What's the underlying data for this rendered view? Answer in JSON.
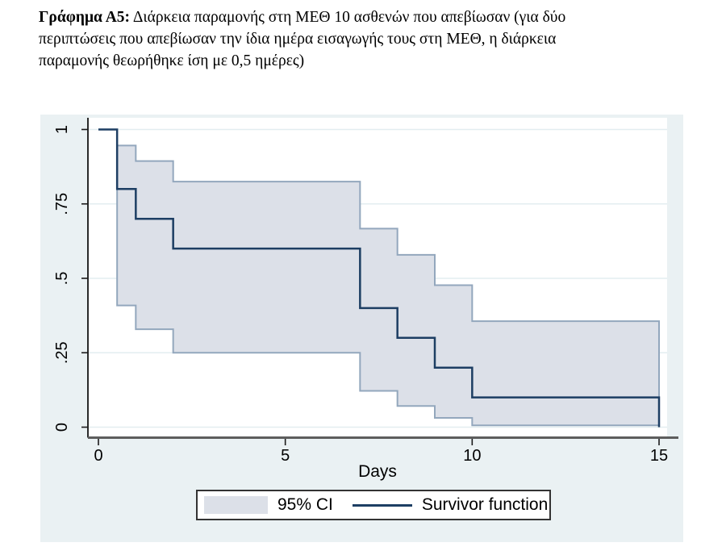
{
  "caption": {
    "bold": "Γράφημα Α5:",
    "line1_rest": "Διάρκεια παραμονής στη ΜΕΘ 10 ασθενών που απεβίωσαν (για δύο",
    "line2": "περιπτώσεις που απεβίωσαν την ίδια ημέρα εισαγωγής τους στη ΜΕΘ, η διάρκεια",
    "line3": "παραμονής θεωρήθηκε ίση με 0,5 ημέρες)"
  },
  "chart_data": {
    "type": "line",
    "subtype": "kaplan-meier-step-with-confidence-band",
    "title": "",
    "xlabel": "Days",
    "ylabel": "",
    "xlim": [
      0,
      15
    ],
    "ylim": [
      0,
      1
    ],
    "xticks": [
      0,
      5,
      10,
      15
    ],
    "xtick_labels": [
      "0",
      "5",
      "10",
      "15"
    ],
    "yticks": [
      0,
      0.25,
      0.5,
      0.75,
      1
    ],
    "ytick_labels": [
      "0",
      ".25",
      ".5",
      ".75",
      "1"
    ],
    "grid": "horizontal",
    "legend": {
      "position": "bottom-center",
      "items": [
        {
          "type": "area",
          "label": "95% CI"
        },
        {
          "type": "line",
          "label": "Survivor function"
        }
      ]
    },
    "series": [
      {
        "name": "Survivor function",
        "type": "step",
        "points": [
          [
            0,
            1
          ],
          [
            0.5,
            0.8
          ],
          [
            1,
            0.7
          ],
          [
            2,
            0.6
          ],
          [
            7,
            0.4
          ],
          [
            8,
            0.3
          ],
          [
            9,
            0.2
          ],
          [
            10,
            0.1
          ],
          [
            15,
            0
          ]
        ]
      },
      {
        "name": "95% CI",
        "type": "band",
        "intervals": [
          {
            "t0": 0.5,
            "t1": 1,
            "lower": 0.409,
            "upper": 0.946
          },
          {
            "t0": 1,
            "t1": 2,
            "lower": 0.329,
            "upper": 0.894
          },
          {
            "t0": 2,
            "t1": 7,
            "lower": 0.25,
            "upper": 0.825
          },
          {
            "t0": 7,
            "t1": 8,
            "lower": 0.122,
            "upper": 0.667
          },
          {
            "t0": 8,
            "t1": 9,
            "lower": 0.071,
            "upper": 0.579
          },
          {
            "t0": 9,
            "t1": 10,
            "lower": 0.031,
            "upper": 0.477
          },
          {
            "t0": 10,
            "t1": 15,
            "lower": 0.006,
            "upper": 0.356
          }
        ]
      }
    ],
    "colors": {
      "survivor_line": "#1d3e63",
      "ci_fill": "#dce0e8",
      "ci_border": "#93a7bd",
      "plot_bg": "#ffffff",
      "outer_bg": "#eaf1f3",
      "grid": "#e3edf0",
      "y_axis": "#2a2a2a",
      "x_axis": "#5d5d5d",
      "tick": "#1a1a1a"
    }
  }
}
